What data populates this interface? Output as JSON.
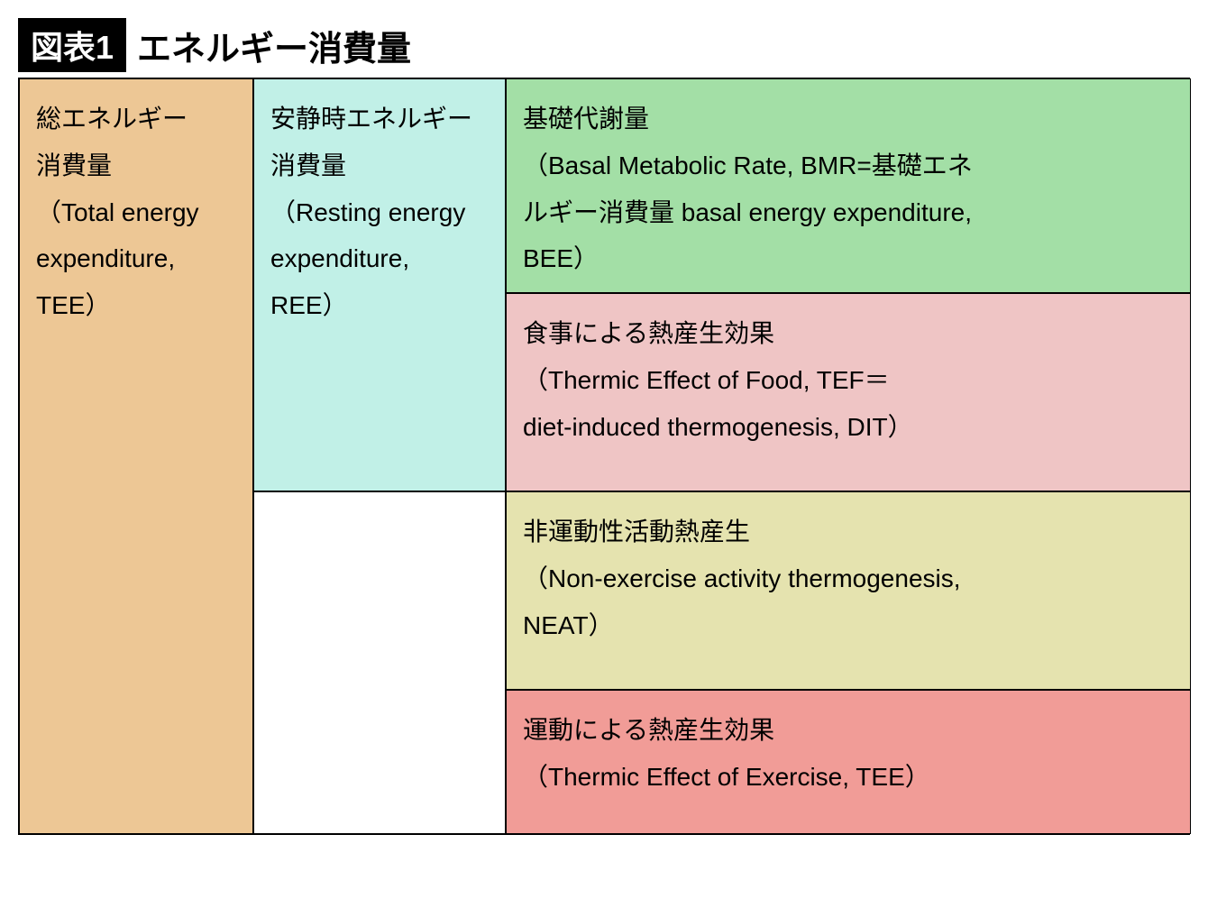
{
  "header": {
    "figure_label": "図表1",
    "title": "エネルギー消費量"
  },
  "cells": {
    "tee": {
      "text": "総エネルギー\n消費量\n（Total energy\nexpenditure,\nTEE）",
      "bg_color": "#edc795"
    },
    "ree": {
      "text": "安静時エネルギー\n消費量\n（Resting energy\nexpenditure,\nREE）",
      "bg_color": "#c1f0e7"
    },
    "bmr": {
      "text": "基礎代謝量\n（Basal Metabolic Rate, BMR=基礎エネ\nルギー消費量 basal energy expenditure,\nBEE）",
      "bg_color": "#a3dfa6"
    },
    "tef": {
      "text": "食事による熱産生効果\n（Thermic Effect of Food, TEF＝\ndiet-induced thermogenesis, DIT）",
      "bg_color": "#efc5c5"
    },
    "neat": {
      "text": "非運動性活動熱産生\n（Non-exercise activity thermogenesis,\nNEAT）",
      "bg_color": "#e5e3af"
    },
    "exercise": {
      "text": "運動による熱産生効果\n（Thermic Effect of Exercise, TEE）",
      "bg_color": "#f19c97"
    },
    "empty": {
      "bg_color": "#ffffff"
    }
  },
  "style": {
    "border_color": "#000000",
    "font_size_cell": 28,
    "font_size_title": 38,
    "font_size_label": 36,
    "line_height": 1.85
  }
}
